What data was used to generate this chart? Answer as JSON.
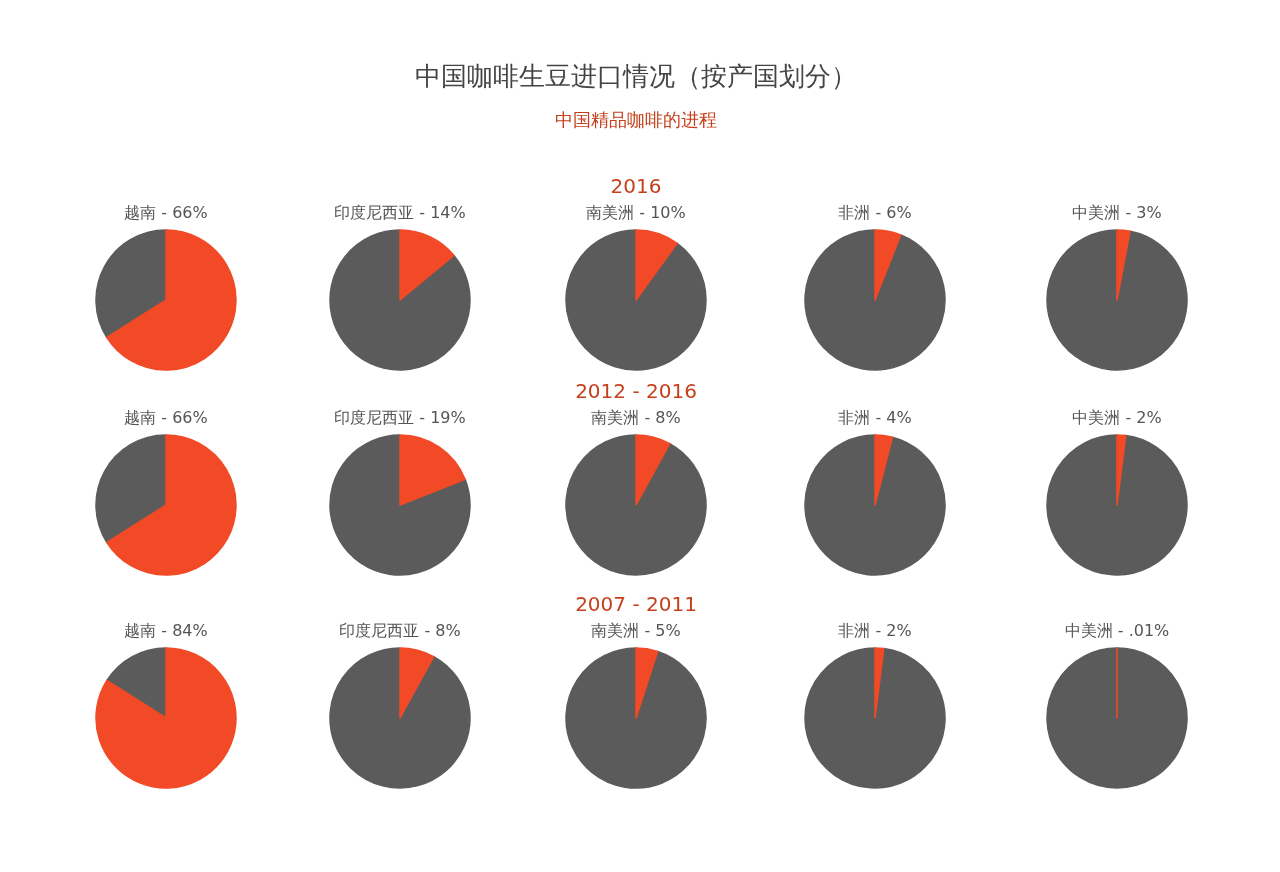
{
  "chart_data": [
    {
      "type": "pie",
      "categories": [
        "越南",
        null
      ],
      "values": [
        66,
        34
      ],
      "value_labels": [
        "66%",
        null
      ],
      "colors": [
        "#f24a26",
        "#5b5b5b"
      ]
    },
    {
      "type": "pie",
      "categories": [
        "印度尼西亚",
        null
      ],
      "values": [
        14,
        86
      ],
      "value_labels": [
        "14%",
        null
      ],
      "colors": [
        "#f24a26",
        "#5b5b5b"
      ]
    },
    {
      "type": "pie",
      "title": "中国咖啡生豆进口情况（按产国划分）",
      "subtitle": "中国精品咖啡的进程",
      "annotations": [
        "2016"
      ],
      "categories": [
        "南美洲",
        null
      ],
      "values": [
        10,
        90
      ],
      "value_labels": [
        "10%",
        null
      ],
      "colors": [
        "#f24a26",
        "#5b5b5b"
      ]
    },
    {
      "type": "pie",
      "categories": [
        "非洲",
        null
      ],
      "values": [
        6,
        94
      ],
      "value_labels": [
        "6%",
        null
      ],
      "colors": [
        "#f24a26",
        "#5b5b5b"
      ]
    },
    {
      "type": "pie",
      "categories": [
        "中美洲",
        null
      ],
      "values": [
        3,
        97
      ],
      "value_labels": [
        "3%",
        null
      ],
      "colors": [
        "#f24a26",
        "#5b5b5b"
      ]
    },
    {
      "type": "pie",
      "categories": [
        "越南",
        null
      ],
      "values": [
        66,
        34
      ],
      "value_labels": [
        "66%",
        null
      ],
      "colors": [
        "#f24a26",
        "#5b5b5b"
      ]
    },
    {
      "type": "pie",
      "categories": [
        "印度尼西亚",
        null
      ],
      "values": [
        19,
        81
      ],
      "value_labels": [
        "19%",
        null
      ],
      "colors": [
        "#f24a26",
        "#5b5b5b"
      ]
    },
    {
      "type": "pie",
      "annotations": [
        "2012 - 2016"
      ],
      "categories": [
        "南美洲",
        null
      ],
      "values": [
        8,
        92
      ],
      "value_labels": [
        "8%",
        null
      ],
      "colors": [
        "#f24a26",
        "#5b5b5b"
      ]
    },
    {
      "type": "pie",
      "categories": [
        "非洲",
        null
      ],
      "values": [
        4,
        96
      ],
      "value_labels": [
        "4%",
        null
      ],
      "colors": [
        "#f24a26",
        "#5b5b5b"
      ]
    },
    {
      "type": "pie",
      "categories": [
        "中美洲",
        null
      ],
      "values": [
        2,
        98
      ],
      "value_labels": [
        "2%",
        null
      ],
      "colors": [
        "#f24a26",
        "#5b5b5b"
      ]
    },
    {
      "type": "pie",
      "categories": [
        "越南",
        null
      ],
      "values": [
        84,
        16
      ],
      "value_labels": [
        "84%",
        null
      ],
      "colors": [
        "#f24a26",
        "#5b5b5b"
      ]
    },
    {
      "type": "pie",
      "categories": [
        "印度尼西亚",
        null
      ],
      "values": [
        8,
        92
      ],
      "value_labels": [
        "8%",
        null
      ],
      "colors": [
        "#f24a26",
        "#5b5b5b"
      ]
    },
    {
      "type": "pie",
      "annotations": [
        "2007 - 2011"
      ],
      "categories": [
        "南美洲",
        null
      ],
      "values": [
        5,
        95
      ],
      "value_labels": [
        "5%",
        null
      ],
      "colors": [
        "#f24a26",
        "#5b5b5b"
      ]
    },
    {
      "type": "pie",
      "categories": [
        "非洲",
        null
      ],
      "values": [
        2,
        98
      ],
      "value_labels": [
        "2%",
        null
      ],
      "colors": [
        "#f24a26",
        "#5b5b5b"
      ]
    },
    {
      "type": "pie",
      "categories": [
        "中美洲",
        null
      ],
      "values": [
        0.01,
        99.99
      ],
      "value_labels": [
        ".01%",
        null
      ],
      "colors": [
        "#f24a26",
        "#5b5b5b"
      ]
    }
  ]
}
